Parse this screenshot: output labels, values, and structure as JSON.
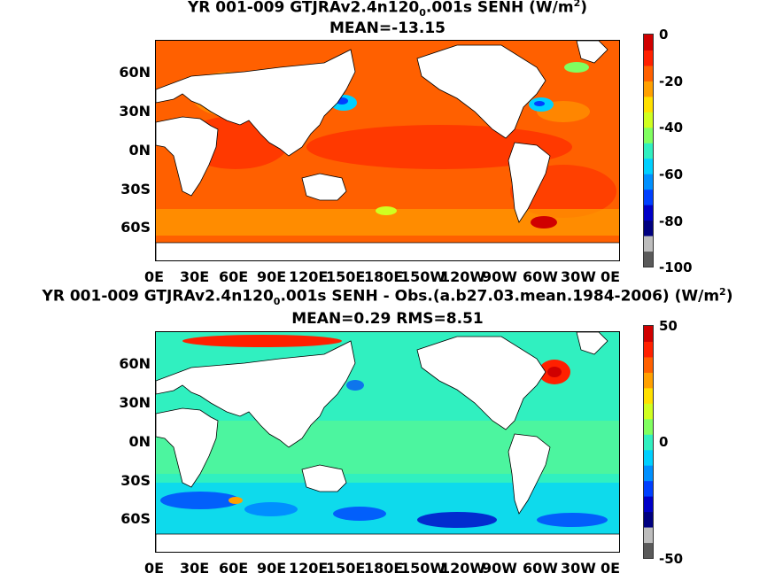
{
  "chart_data": [
    {
      "type": "heatmap",
      "title_main": "YR 001-009 GTJRAv2.4n120",
      "title_sub": "0",
      "title_tail": ".001s  SENH (W/m",
      "title_sup": "2",
      "title_close": ")",
      "subtitle": "MEAN=-13.15",
      "ylabels": [
        "60N",
        "30N",
        "0N",
        "30S",
        "60S"
      ],
      "xlabels": [
        "0E",
        "30E",
        "60E",
        "90E",
        "120E",
        "150E",
        "180E",
        "150W",
        "120W",
        "90W",
        "60W",
        "30W",
        "0E"
      ],
      "colorbar_ticks": [
        "0",
        "-20",
        "-40",
        "-60",
        "-80",
        "-100"
      ],
      "colorbar_range": [
        -100,
        0
      ],
      "colorscale": [
        "#5a5a5a",
        "#bdbdbd",
        "#000080",
        "#0000c8",
        "#0040ff",
        "#0090ff",
        "#00d0ff",
        "#30f0c0",
        "#80ff60",
        "#d0ff20",
        "#ffe000",
        "#ffa000",
        "#ff6000",
        "#ff2000",
        "#d00000"
      ]
    },
    {
      "type": "heatmap",
      "title_main": "YR 001-009 GTJRAv2.4n120",
      "title_sub": "0",
      "title_tail": ".001s SENH - Obs.(a.b27.03.mean.1984-2006) (W/m",
      "title_sup": "2",
      "title_close": ")",
      "subtitle": "MEAN=0.29 RMS=8.51",
      "ylabels": [
        "60N",
        "30N",
        "0N",
        "30S",
        "60S"
      ],
      "xlabels": [
        "0E",
        "30E",
        "60E",
        "90E",
        "120E",
        "150E",
        "180E",
        "150W",
        "120W",
        "90W",
        "60W",
        "30W",
        "0E"
      ],
      "colorbar_ticks": [
        "50",
        "0",
        "-50"
      ],
      "colorbar_range": [
        -50,
        50
      ],
      "colorscale": [
        "#5a5a5a",
        "#bdbdbd",
        "#000080",
        "#0000c8",
        "#0040ff",
        "#0090ff",
        "#00d0ff",
        "#30f0c0",
        "#80ff60",
        "#d0ff20",
        "#ffe000",
        "#ffa000",
        "#ff6000",
        "#ff2000",
        "#d00000"
      ]
    }
  ]
}
